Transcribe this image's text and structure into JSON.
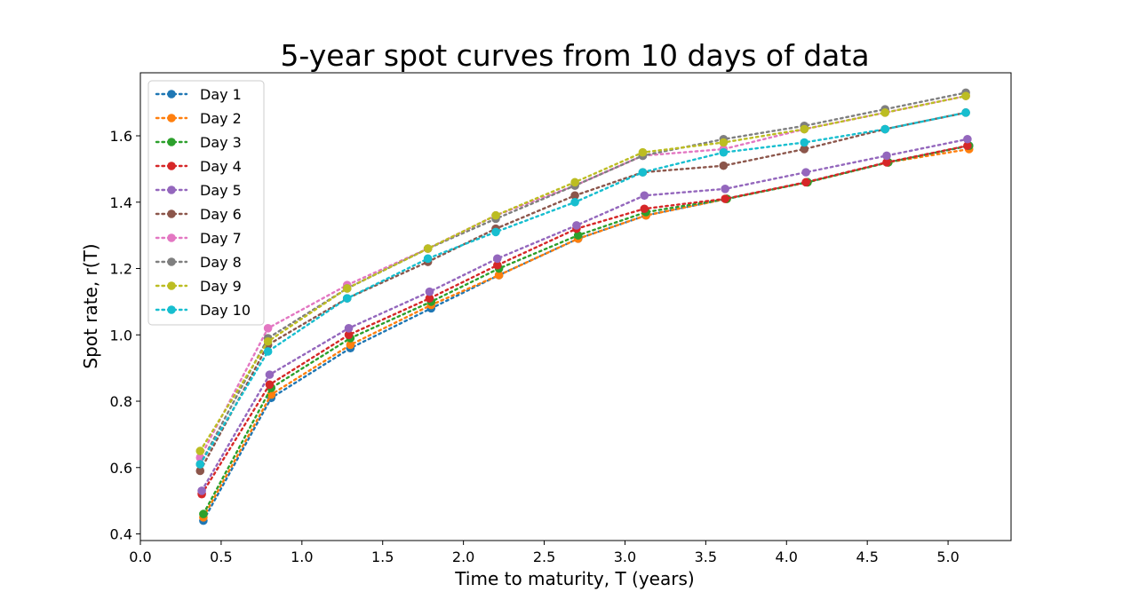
{
  "chart_data": {
    "type": "line",
    "title": "5-year spot curves from 10 days of data",
    "xlabel": "Time to maturity, T (years)",
    "ylabel": "Spot rate, r(T)",
    "xlim": [
      0.0,
      5.39
    ],
    "ylim": [
      0.38,
      1.79
    ],
    "xticks": [
      0.0,
      0.5,
      1.0,
      1.5,
      2.0,
      2.5,
      3.0,
      3.5,
      4.0,
      4.5,
      5.0
    ],
    "xtick_labels": [
      "0.0",
      "0.5",
      "1.0",
      "1.5",
      "2.0",
      "2.5",
      "3.0",
      "3.5",
      "4.0",
      "4.5",
      "5.0"
    ],
    "yticks": [
      0.4,
      0.6,
      0.8,
      1.0,
      1.2,
      1.4,
      1.6
    ],
    "ytick_labels": [
      "0.4",
      "0.6",
      "0.8",
      "1.0",
      "1.2",
      "1.4",
      "1.6"
    ],
    "grid": false,
    "legend_position": "top-left",
    "line_style": "dotted",
    "marker": "circle",
    "series": [
      {
        "name": "Day 1",
        "color": "#1f77b4",
        "x": [
          0.39,
          0.81,
          1.3,
          1.8,
          2.22,
          2.71,
          3.13,
          3.63,
          4.13,
          4.63,
          5.13
        ],
        "y": [
          0.44,
          0.81,
          0.96,
          1.08,
          1.18,
          1.29,
          1.36,
          1.41,
          1.46,
          1.52,
          1.57
        ]
      },
      {
        "name": "Day 2",
        "color": "#ff7f0e",
        "x": [
          0.39,
          0.81,
          1.3,
          1.8,
          2.22,
          2.71,
          3.13,
          3.63,
          4.13,
          4.63,
          5.13
        ],
        "y": [
          0.45,
          0.82,
          0.97,
          1.09,
          1.18,
          1.29,
          1.36,
          1.41,
          1.46,
          1.52,
          1.56
        ]
      },
      {
        "name": "Day 3",
        "color": "#2ca02c",
        "x": [
          0.39,
          0.81,
          1.3,
          1.8,
          2.22,
          2.71,
          3.13,
          3.63,
          4.13,
          4.63,
          5.13
        ],
        "y": [
          0.46,
          0.84,
          0.99,
          1.1,
          1.2,
          1.3,
          1.37,
          1.41,
          1.46,
          1.52,
          1.57
        ]
      },
      {
        "name": "Day 4",
        "color": "#d62728",
        "x": [
          0.38,
          0.8,
          1.29,
          1.79,
          2.21,
          2.7,
          3.12,
          3.62,
          4.12,
          4.62,
          5.12
        ],
        "y": [
          0.52,
          0.85,
          1.0,
          1.11,
          1.21,
          1.32,
          1.38,
          1.41,
          1.46,
          1.52,
          1.57
        ]
      },
      {
        "name": "Day 5",
        "color": "#9467bd",
        "x": [
          0.38,
          0.8,
          1.29,
          1.79,
          2.21,
          2.7,
          3.12,
          3.62,
          4.12,
          4.62,
          5.12
        ],
        "y": [
          0.53,
          0.88,
          1.02,
          1.13,
          1.23,
          1.33,
          1.42,
          1.44,
          1.49,
          1.54,
          1.59
        ]
      },
      {
        "name": "Day 6",
        "color": "#8c564b",
        "x": [
          0.37,
          0.79,
          1.28,
          1.78,
          2.2,
          2.69,
          3.11,
          3.61,
          4.11,
          4.61,
          5.11
        ],
        "y": [
          0.59,
          0.97,
          1.11,
          1.22,
          1.32,
          1.42,
          1.49,
          1.51,
          1.56,
          1.62,
          1.67
        ]
      },
      {
        "name": "Day 7",
        "color": "#e377c2",
        "x": [
          0.37,
          0.79,
          1.28,
          1.78,
          2.2,
          2.69,
          3.11,
          3.61,
          4.11,
          4.61,
          5.11
        ],
        "y": [
          0.63,
          1.02,
          1.15,
          1.26,
          1.36,
          1.45,
          1.54,
          1.56,
          1.62,
          1.67,
          1.72
        ]
      },
      {
        "name": "Day 8",
        "color": "#7f7f7f",
        "x": [
          0.37,
          0.79,
          1.28,
          1.78,
          2.2,
          2.69,
          3.11,
          3.61,
          4.11,
          4.61,
          5.11
        ],
        "y": [
          0.61,
          0.99,
          1.14,
          1.26,
          1.35,
          1.45,
          1.54,
          1.59,
          1.63,
          1.68,
          1.73
        ]
      },
      {
        "name": "Day 9",
        "color": "#bcbd22",
        "x": [
          0.37,
          0.79,
          1.28,
          1.78,
          2.2,
          2.69,
          3.11,
          3.61,
          4.11,
          4.61,
          5.11
        ],
        "y": [
          0.65,
          0.98,
          1.14,
          1.26,
          1.36,
          1.46,
          1.55,
          1.58,
          1.62,
          1.67,
          1.72
        ]
      },
      {
        "name": "Day 10",
        "color": "#17becf",
        "x": [
          0.37,
          0.79,
          1.28,
          1.78,
          2.2,
          2.69,
          3.11,
          3.61,
          4.11,
          4.61,
          5.11
        ],
        "y": [
          0.61,
          0.95,
          1.11,
          1.23,
          1.31,
          1.4,
          1.49,
          1.55,
          1.58,
          1.62,
          1.67
        ]
      }
    ]
  }
}
